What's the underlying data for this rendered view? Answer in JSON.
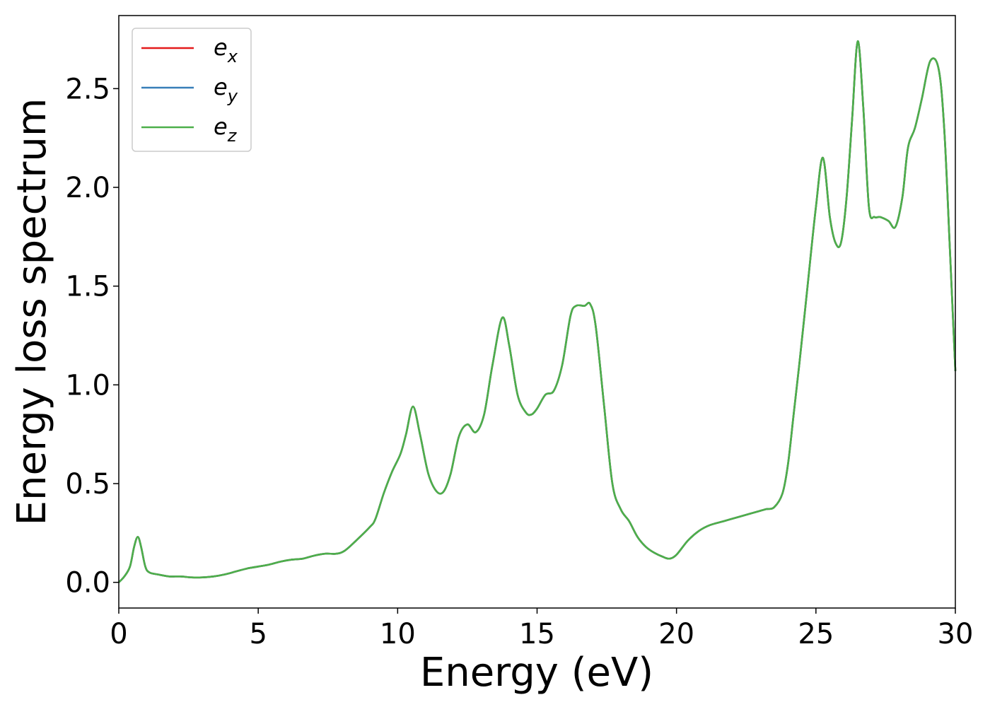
{
  "chart_data": {
    "type": "line",
    "xlabel": "Energy (eV)",
    "ylabel": "Energy loss spectrum",
    "xlim": [
      0,
      30
    ],
    "ylim": [
      -0.13,
      2.87
    ],
    "xticks": [
      0,
      5,
      10,
      15,
      20,
      25,
      30
    ],
    "yticks": [
      0.0,
      0.5,
      1.0,
      1.5,
      2.0,
      2.5
    ],
    "xtick_labels": [
      "0",
      "5",
      "10",
      "15",
      "20",
      "25",
      "30"
    ],
    "ytick_labels": [
      "0.0",
      "0.5",
      "1.0",
      "1.5",
      "2.0",
      "2.5"
    ],
    "grid": false,
    "legend_position": "top-left",
    "series": [
      {
        "name": "e",
        "sub": "x",
        "color": "#e41a1c",
        "x": [
          0,
          0.2,
          0.4,
          0.55,
          0.68,
          0.8,
          0.95,
          1.1,
          1.4,
          1.8,
          2.2,
          2.6,
          3.0,
          3.4,
          3.8,
          4.2,
          4.6,
          5.0,
          5.4,
          5.8,
          6.2,
          6.6,
          7.0,
          7.4,
          7.8,
          8.1,
          8.5,
          9.0,
          9.2,
          9.5,
          9.8,
          10.1,
          10.3,
          10.55,
          10.8,
          11.1,
          11.4,
          11.65,
          11.9,
          12.2,
          12.5,
          12.8,
          13.1,
          13.4,
          13.75,
          14.0,
          14.3,
          14.6,
          14.8,
          15.0,
          15.3,
          15.6,
          15.9,
          16.2,
          16.4,
          16.7,
          16.9,
          17.1,
          17.4,
          17.7,
          18.0,
          18.3,
          18.6,
          18.9,
          19.2,
          19.5,
          19.75,
          20.0,
          20.4,
          20.8,
          21.2,
          21.7,
          22.2,
          22.7,
          23.2,
          23.5,
          23.8,
          24.0,
          24.2,
          24.4,
          24.7,
          25.0,
          25.25,
          25.5,
          25.7,
          25.9,
          26.1,
          26.3,
          26.5,
          26.7,
          26.9,
          27.1,
          27.3,
          27.6,
          27.85,
          28.1,
          28.3,
          28.55,
          28.8,
          29.1,
          29.4,
          29.6,
          29.8,
          30.0
        ],
        "values": [
          0.0,
          0.03,
          0.08,
          0.18,
          0.23,
          0.18,
          0.08,
          0.05,
          0.04,
          0.03,
          0.03,
          0.025,
          0.025,
          0.03,
          0.04,
          0.055,
          0.07,
          0.08,
          0.09,
          0.105,
          0.115,
          0.12,
          0.135,
          0.145,
          0.145,
          0.16,
          0.21,
          0.28,
          0.32,
          0.45,
          0.56,
          0.65,
          0.75,
          0.89,
          0.75,
          0.55,
          0.46,
          0.46,
          0.55,
          0.74,
          0.8,
          0.76,
          0.85,
          1.1,
          1.34,
          1.2,
          0.95,
          0.86,
          0.85,
          0.88,
          0.95,
          0.97,
          1.1,
          1.35,
          1.4,
          1.4,
          1.41,
          1.3,
          0.9,
          0.5,
          0.37,
          0.31,
          0.23,
          0.18,
          0.15,
          0.13,
          0.12,
          0.14,
          0.21,
          0.26,
          0.29,
          0.31,
          0.33,
          0.35,
          0.37,
          0.38,
          0.45,
          0.6,
          0.85,
          1.1,
          1.5,
          1.9,
          2.15,
          1.85,
          1.72,
          1.72,
          1.95,
          2.35,
          2.74,
          2.4,
          1.9,
          1.85,
          1.85,
          1.83,
          1.8,
          1.95,
          2.2,
          2.3,
          2.45,
          2.64,
          2.6,
          2.3,
          1.7,
          1.07
        ]
      },
      {
        "name": "e",
        "sub": "y",
        "color": "#377eb8",
        "x": [
          0,
          0.2,
          0.4,
          0.55,
          0.68,
          0.8,
          0.95,
          1.1,
          1.4,
          1.8,
          2.2,
          2.6,
          3.0,
          3.4,
          3.8,
          4.2,
          4.6,
          5.0,
          5.4,
          5.8,
          6.2,
          6.6,
          7.0,
          7.4,
          7.8,
          8.1,
          8.5,
          9.0,
          9.2,
          9.5,
          9.8,
          10.1,
          10.3,
          10.55,
          10.8,
          11.1,
          11.4,
          11.65,
          11.9,
          12.2,
          12.5,
          12.8,
          13.1,
          13.4,
          13.75,
          14.0,
          14.3,
          14.6,
          14.8,
          15.0,
          15.3,
          15.6,
          15.9,
          16.2,
          16.4,
          16.7,
          16.9,
          17.1,
          17.4,
          17.7,
          18.0,
          18.3,
          18.6,
          18.9,
          19.2,
          19.5,
          19.75,
          20.0,
          20.4,
          20.8,
          21.2,
          21.7,
          22.2,
          22.7,
          23.2,
          23.5,
          23.8,
          24.0,
          24.2,
          24.4,
          24.7,
          25.0,
          25.25,
          25.5,
          25.7,
          25.9,
          26.1,
          26.3,
          26.5,
          26.7,
          26.9,
          27.1,
          27.3,
          27.6,
          27.85,
          28.1,
          28.3,
          28.55,
          28.8,
          29.1,
          29.4,
          29.6,
          29.8,
          30.0
        ],
        "values": [
          0.0,
          0.03,
          0.08,
          0.18,
          0.23,
          0.18,
          0.08,
          0.05,
          0.04,
          0.03,
          0.03,
          0.025,
          0.025,
          0.03,
          0.04,
          0.055,
          0.07,
          0.08,
          0.09,
          0.105,
          0.115,
          0.12,
          0.135,
          0.145,
          0.145,
          0.16,
          0.21,
          0.28,
          0.32,
          0.45,
          0.56,
          0.65,
          0.75,
          0.89,
          0.75,
          0.55,
          0.46,
          0.46,
          0.55,
          0.74,
          0.8,
          0.76,
          0.85,
          1.1,
          1.34,
          1.2,
          0.95,
          0.86,
          0.85,
          0.88,
          0.95,
          0.97,
          1.1,
          1.35,
          1.4,
          1.4,
          1.41,
          1.3,
          0.9,
          0.5,
          0.37,
          0.31,
          0.23,
          0.18,
          0.15,
          0.13,
          0.12,
          0.14,
          0.21,
          0.26,
          0.29,
          0.31,
          0.33,
          0.35,
          0.37,
          0.38,
          0.45,
          0.6,
          0.85,
          1.1,
          1.5,
          1.9,
          2.15,
          1.85,
          1.72,
          1.72,
          1.95,
          2.35,
          2.74,
          2.4,
          1.9,
          1.85,
          1.85,
          1.83,
          1.8,
          1.95,
          2.2,
          2.3,
          2.45,
          2.64,
          2.6,
          2.3,
          1.7,
          1.07
        ]
      },
      {
        "name": "e",
        "sub": "z",
        "color": "#4daf4a",
        "x": [
          0,
          0.2,
          0.4,
          0.55,
          0.68,
          0.8,
          0.95,
          1.1,
          1.4,
          1.8,
          2.2,
          2.6,
          3.0,
          3.4,
          3.8,
          4.2,
          4.6,
          5.0,
          5.4,
          5.8,
          6.2,
          6.6,
          7.0,
          7.4,
          7.8,
          8.1,
          8.5,
          9.0,
          9.2,
          9.5,
          9.8,
          10.1,
          10.3,
          10.55,
          10.8,
          11.1,
          11.4,
          11.65,
          11.9,
          12.2,
          12.5,
          12.8,
          13.1,
          13.4,
          13.75,
          14.0,
          14.3,
          14.6,
          14.8,
          15.0,
          15.3,
          15.6,
          15.9,
          16.2,
          16.4,
          16.7,
          16.9,
          17.1,
          17.4,
          17.7,
          18.0,
          18.3,
          18.6,
          18.9,
          19.2,
          19.5,
          19.75,
          20.0,
          20.4,
          20.8,
          21.2,
          21.7,
          22.2,
          22.7,
          23.2,
          23.5,
          23.8,
          24.0,
          24.2,
          24.4,
          24.7,
          25.0,
          25.25,
          25.5,
          25.7,
          25.9,
          26.1,
          26.3,
          26.5,
          26.7,
          26.9,
          27.1,
          27.3,
          27.6,
          27.85,
          28.1,
          28.3,
          28.55,
          28.8,
          29.1,
          29.4,
          29.6,
          29.8,
          30.0
        ],
        "values": [
          0.0,
          0.03,
          0.08,
          0.18,
          0.23,
          0.18,
          0.08,
          0.05,
          0.04,
          0.03,
          0.03,
          0.025,
          0.025,
          0.03,
          0.04,
          0.055,
          0.07,
          0.08,
          0.09,
          0.105,
          0.115,
          0.12,
          0.135,
          0.145,
          0.145,
          0.16,
          0.21,
          0.28,
          0.32,
          0.45,
          0.56,
          0.65,
          0.75,
          0.89,
          0.75,
          0.55,
          0.46,
          0.46,
          0.55,
          0.74,
          0.8,
          0.76,
          0.85,
          1.1,
          1.34,
          1.2,
          0.95,
          0.86,
          0.85,
          0.88,
          0.95,
          0.97,
          1.1,
          1.35,
          1.4,
          1.4,
          1.41,
          1.3,
          0.9,
          0.5,
          0.37,
          0.31,
          0.23,
          0.18,
          0.15,
          0.13,
          0.12,
          0.14,
          0.21,
          0.26,
          0.29,
          0.31,
          0.33,
          0.35,
          0.37,
          0.38,
          0.45,
          0.6,
          0.85,
          1.1,
          1.5,
          1.9,
          2.15,
          1.85,
          1.72,
          1.72,
          1.95,
          2.35,
          2.74,
          2.4,
          1.9,
          1.85,
          1.85,
          1.83,
          1.8,
          1.95,
          2.2,
          2.3,
          2.45,
          2.64,
          2.6,
          2.3,
          1.7,
          1.07
        ]
      }
    ]
  }
}
